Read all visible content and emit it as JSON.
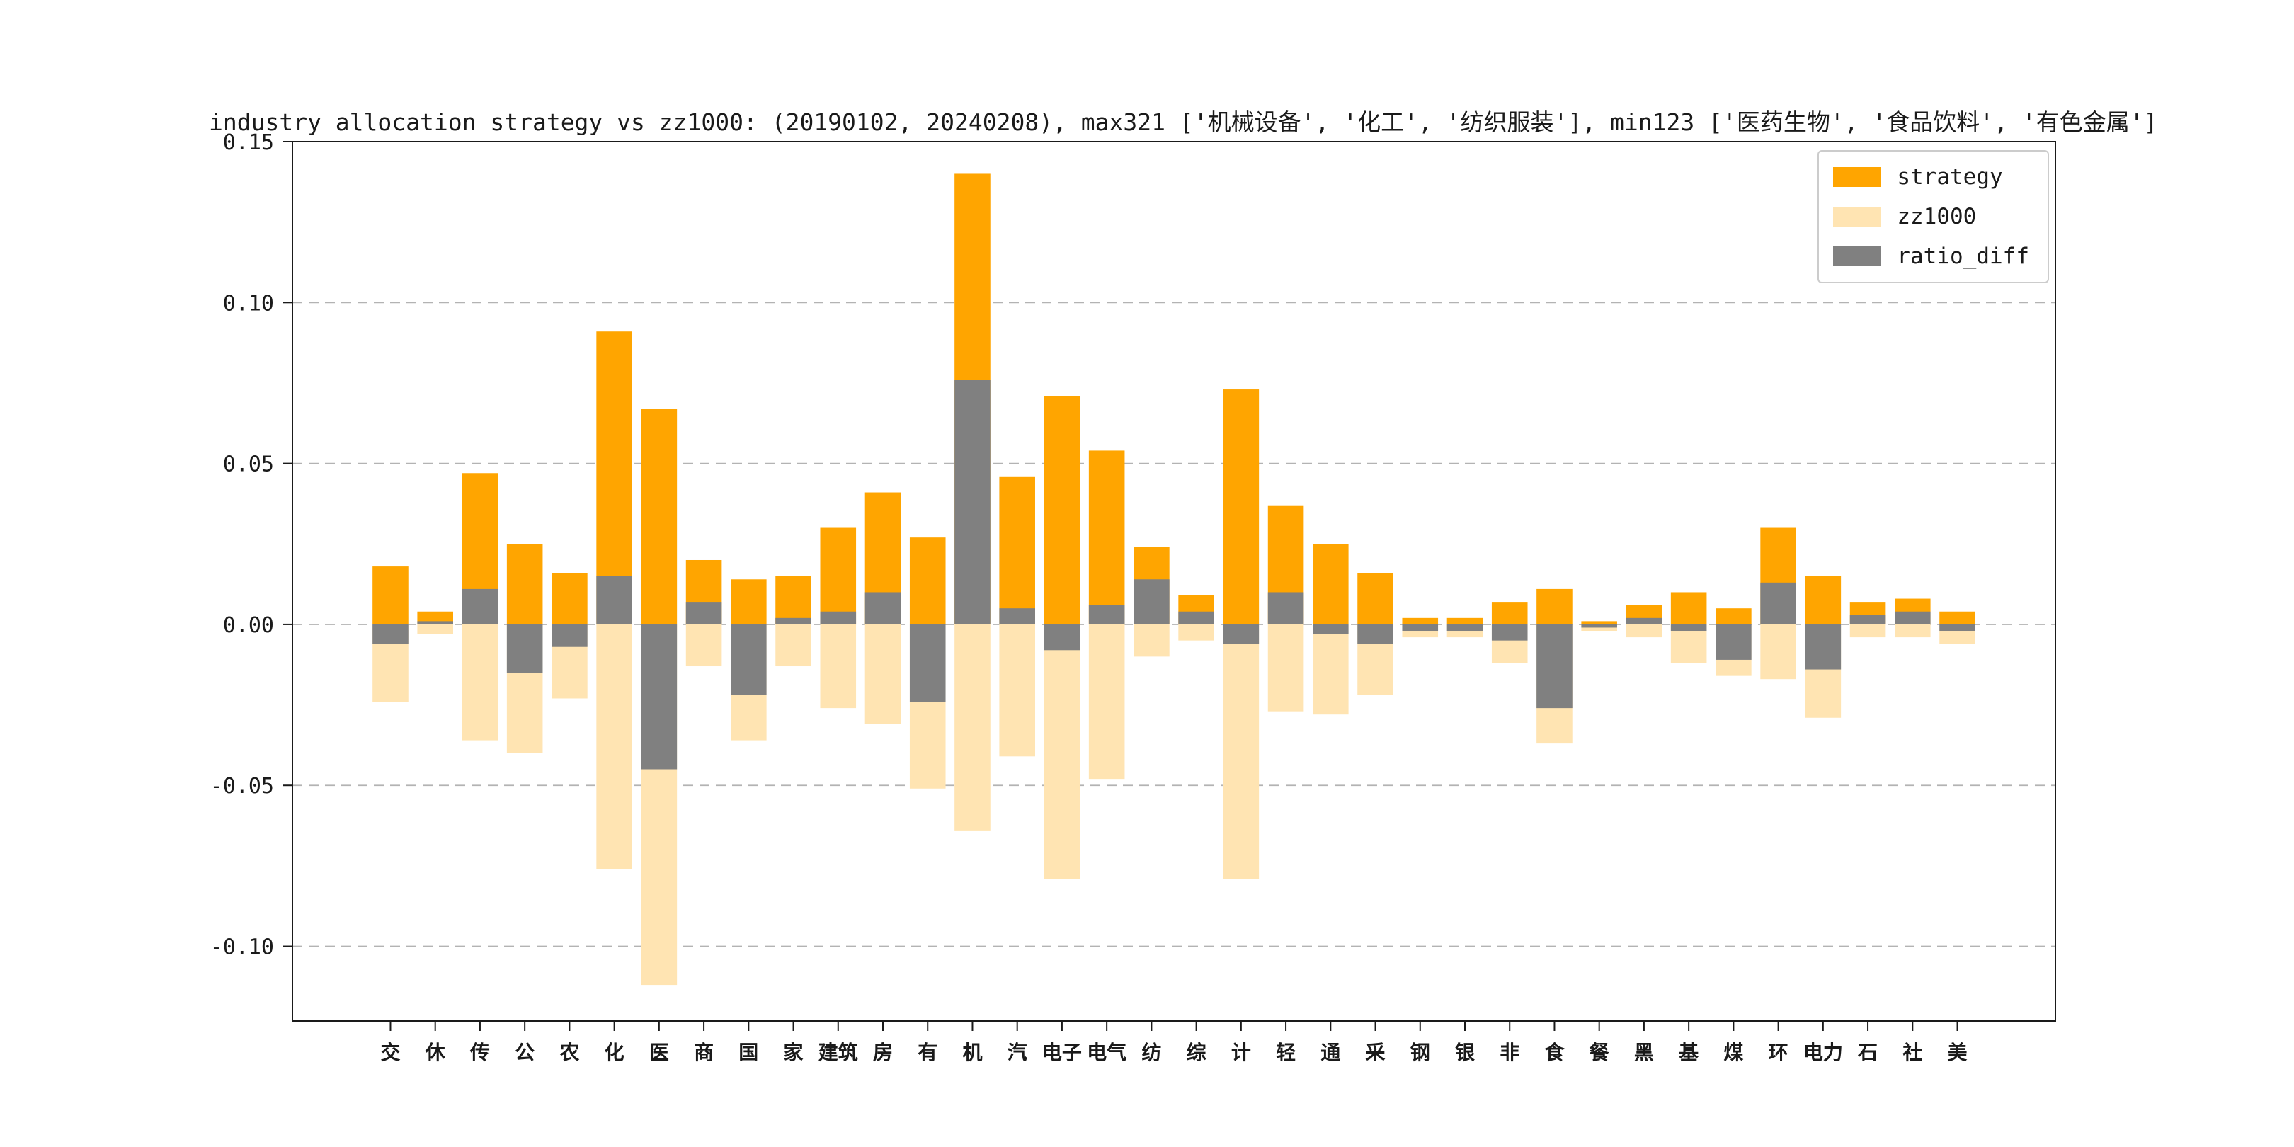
{
  "chart_data": {
    "type": "bar",
    "title": "industry allocation strategy vs zz1000: (20190102, 20240208), max321 ['机械设备', '化工', '纺织服装'], min123 ['医药生物', '食品饮料', '有色金属']",
    "categories": [
      "交",
      "休",
      "传",
      "公",
      "农",
      "化",
      "医",
      "商",
      "国",
      "家",
      "建筑",
      "房",
      "有",
      "机",
      "汽",
      "电子",
      "电气",
      "纺",
      "综",
      "计",
      "轻",
      "通",
      "采",
      "钢",
      "银",
      "非",
      "食",
      "餐",
      "黑",
      "基",
      "煤",
      "环",
      "电力",
      "石",
      "社",
      "美"
    ],
    "series": [
      {
        "name": "strategy",
        "color": "#FFA500",
        "direction": "up",
        "values": [
          0.018,
          0.004,
          0.047,
          0.025,
          0.016,
          0.091,
          0.067,
          0.02,
          0.014,
          0.015,
          0.03,
          0.041,
          0.027,
          0.14,
          0.046,
          0.071,
          0.054,
          0.024,
          0.009,
          0.073,
          0.037,
          0.025,
          0.016,
          0.002,
          0.002,
          0.007,
          0.011,
          0.001,
          0.006,
          0.01,
          0.005,
          0.03,
          0.015,
          0.007,
          0.008,
          0.004
        ]
      },
      {
        "name": "zz1000",
        "color": "#FFE4B2",
        "direction": "down",
        "values": [
          0.024,
          0.003,
          0.036,
          0.04,
          0.023,
          0.076,
          0.112,
          0.013,
          0.036,
          0.013,
          0.026,
          0.031,
          0.051,
          0.064,
          0.041,
          0.079,
          0.048,
          0.01,
          0.005,
          0.079,
          0.027,
          0.028,
          0.022,
          0.004,
          0.004,
          0.012,
          0.037,
          0.002,
          0.004,
          0.012,
          0.016,
          0.017,
          0.029,
          0.004,
          0.004,
          0.006
        ]
      },
      {
        "name": "ratio_diff",
        "color": "#808080",
        "direction": "signed",
        "values": [
          -0.006,
          0.001,
          0.011,
          -0.015,
          -0.007,
          0.015,
          -0.045,
          0.007,
          -0.022,
          0.002,
          0.004,
          0.01,
          -0.024,
          0.076,
          0.005,
          -0.008,
          0.006,
          0.014,
          0.004,
          -0.006,
          0.01,
          -0.003,
          -0.006,
          -0.002,
          -0.002,
          -0.005,
          -0.026,
          -0.001,
          0.002,
          -0.002,
          -0.011,
          0.013,
          -0.014,
          0.003,
          0.004,
          -0.002
        ]
      }
    ],
    "xlabel": "",
    "ylabel": "",
    "ylim": [
      -0.1232,
      0.15
    ],
    "yticks": [
      0.15,
      0.1,
      0.05,
      0.0,
      -0.05,
      -0.1
    ],
    "ytick_labels": [
      "0.15",
      "0.10",
      "0.05",
      "0.00",
      "-0.05",
      "-0.10"
    ],
    "grid": "horizontal dashed",
    "grid_color": "#b3b3b3",
    "frame_color": "#1a1a1a",
    "legend_position": "upper right",
    "note": "zz1000 plotted as negative bars below zero; ratio_diff = strategy - zz1000"
  }
}
